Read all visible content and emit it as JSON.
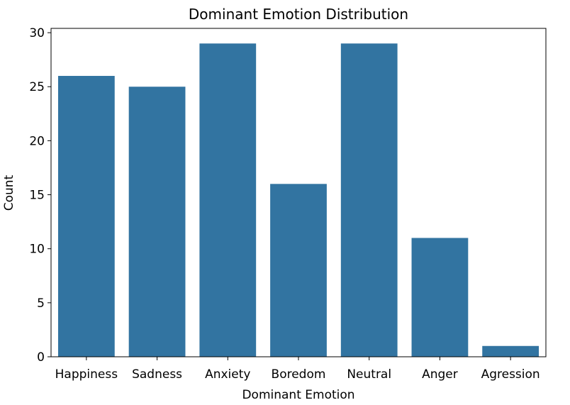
{
  "chart_data": {
    "type": "bar",
    "title": "Dominant Emotion Distribution",
    "xlabel": "Dominant Emotion",
    "ylabel": "Count",
    "categories": [
      "Happiness",
      "Sadness",
      "Anxiety",
      "Boredom",
      "Neutral",
      "Anger",
      "Agression"
    ],
    "values": [
      26,
      25,
      29,
      16,
      29,
      11,
      1
    ],
    "ylim": [
      0,
      30
    ],
    "yticks": [
      0,
      5,
      10,
      15,
      20,
      25,
      30
    ],
    "bar_color": "#3274a1",
    "grid": false,
    "legend": "none"
  }
}
